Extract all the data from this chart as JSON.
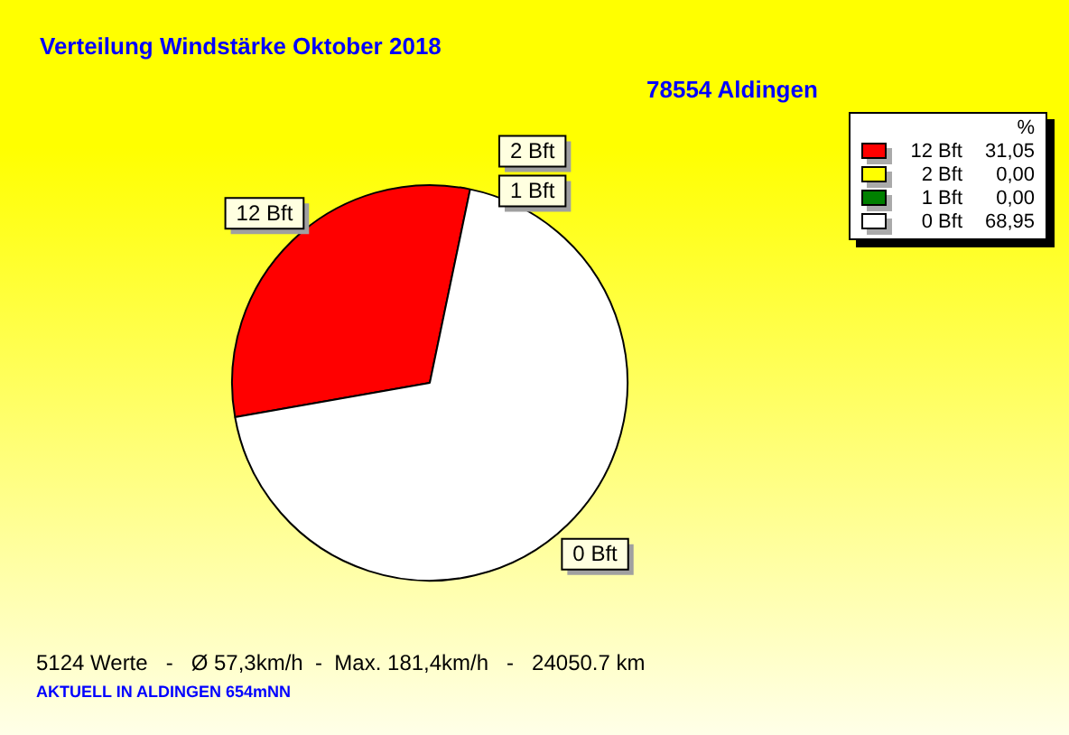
{
  "chart_data": {
    "type": "pie",
    "title": "Verteilung Windstärke  Oktober 2018",
    "subtitle": "78554 Aldingen",
    "legend_title": "%",
    "categories": [
      "12 Bft",
      "2 Bft",
      "1 Bft",
      "0 Bft"
    ],
    "values": [
      31.05,
      0,
      0,
      68.95
    ],
    "colors": [
      "#ff0000",
      "#ffff00",
      "#008000",
      "#ffffff"
    ],
    "value_labels": [
      "31,05",
      "0,00",
      "0,00",
      "68,95"
    ],
    "legend": "top right",
    "annotations": [
      "5124 Werte   -   Ø 57,3km/h  -  Max. 181,4km/h   -   24050.7 km",
      "AKTUELL IN ALDINGEN 654mNN"
    ]
  }
}
